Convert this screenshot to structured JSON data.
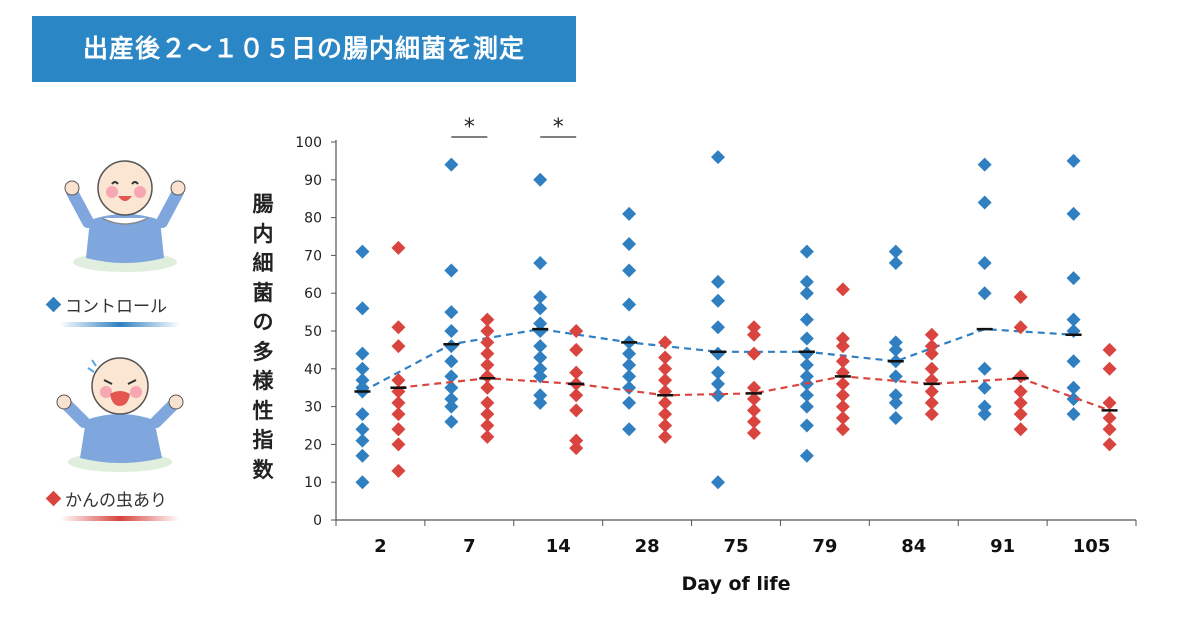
{
  "banner": {
    "title": "出産後２～１０５日の腸内細菌を測定"
  },
  "legend": {
    "control": {
      "label": "コントロール",
      "color": "#2f7fc1"
    },
    "colic": {
      "label": "かんの虫あり",
      "color": "#d9443f"
    }
  },
  "chart_data": {
    "type": "scatter",
    "title": "",
    "xlabel": "Day of life",
    "ylabel": "腸内細菌の多様性指数",
    "ylim": [
      0,
      100
    ],
    "yticks": [
      0,
      10,
      20,
      30,
      40,
      50,
      60,
      70,
      80,
      90,
      100
    ],
    "categories": [
      "2",
      "7",
      "14",
      "28",
      "75",
      "79",
      "84",
      "91",
      "105"
    ],
    "significance": {
      "categories": [
        "7",
        "14"
      ],
      "marker": "*"
    },
    "series": [
      {
        "group": "control",
        "color": "#2f7fc1",
        "points": [
          [
            10,
            17,
            21,
            24,
            28,
            34,
            35,
            37,
            40,
            44,
            56,
            71
          ],
          [
            26,
            30,
            32,
            35,
            38,
            42,
            46,
            50,
            55,
            66,
            94
          ],
          [
            31,
            33,
            38,
            40,
            43,
            46,
            50,
            52,
            56,
            59,
            68,
            90
          ],
          [
            24,
            31,
            35,
            38,
            41,
            44,
            47,
            57,
            66,
            73,
            81
          ],
          [
            10,
            33,
            36,
            39,
            44,
            51,
            58,
            63,
            96
          ],
          [
            17,
            25,
            30,
            33,
            36,
            38,
            41,
            44,
            48,
            53,
            60,
            63,
            71
          ],
          [
            27,
            31,
            33,
            38,
            42,
            45,
            47,
            68,
            71
          ],
          [
            28,
            30,
            35,
            40,
            60,
            68,
            84,
            94
          ],
          [
            28,
            32,
            35,
            42,
            50,
            53,
            64,
            81,
            95
          ]
        ],
        "mean": [
          34,
          46.5,
          50.5,
          47,
          44.5,
          44.5,
          42,
          50.5,
          49
        ]
      },
      {
        "group": "colic",
        "color": "#d9443f",
        "points": [
          [
            13,
            20,
            24,
            28,
            31,
            34,
            37,
            46,
            51,
            72
          ],
          [
            22,
            25,
            28,
            31,
            35,
            38,
            41,
            44,
            47,
            50,
            53
          ],
          [
            19,
            21,
            29,
            33,
            36,
            39,
            45,
            50
          ],
          [
            22,
            25,
            28,
            31,
            34,
            37,
            40,
            43,
            47
          ],
          [
            23,
            26,
            29,
            32,
            35,
            44,
            49,
            51
          ],
          [
            24,
            27,
            30,
            33,
            36,
            39,
            42,
            46,
            48,
            61
          ],
          [
            28,
            31,
            34,
            37,
            40,
            44,
            46,
            49
          ],
          [
            24,
            28,
            31,
            34,
            38,
            51,
            59
          ],
          [
            20,
            24,
            27,
            31,
            40,
            45
          ]
        ],
        "mean": [
          35,
          37.5,
          36,
          33,
          33.5,
          38,
          36,
          37.5,
          29
        ]
      }
    ]
  }
}
